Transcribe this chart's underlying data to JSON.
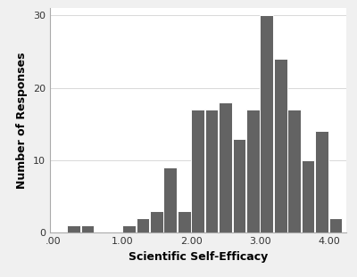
{
  "bar_lefts": [
    0.2,
    0.4,
    1.0,
    1.2,
    1.4,
    1.6,
    1.8,
    2.0,
    2.2,
    2.4,
    2.6,
    2.8,
    3.0,
    3.2,
    3.4,
    3.6,
    3.8,
    4.0
  ],
  "bar_heights": [
    1,
    1,
    1,
    2,
    3,
    9,
    3,
    17,
    17,
    18,
    13,
    17,
    30,
    24,
    17,
    10,
    14,
    2
  ],
  "bar_width": 0.19,
  "bar_color": "#636363",
  "bar_edgecolor": "#ffffff",
  "bar_linewidth": 0.7,
  "xlim": [
    -0.05,
    4.25
  ],
  "ylim": [
    0,
    31
  ],
  "xticks": [
    0.0,
    1.0,
    2.0,
    3.0,
    4.0
  ],
  "xticklabels": [
    ".00",
    "1.00",
    "2.00",
    "3.00",
    "4.00"
  ],
  "yticks": [
    0,
    10,
    20,
    30
  ],
  "xlabel": "Scientific Self-Efficacy",
  "ylabel": "Number of Responses",
  "xlabel_fontsize": 9,
  "ylabel_fontsize": 9,
  "tick_fontsize": 8,
  "background_color": "#f0f0f0",
  "axes_background_color": "#ffffff",
  "grid_color": "#d8d8d8",
  "grid_linewidth": 0.7,
  "spine_color": "#aaaaaa"
}
